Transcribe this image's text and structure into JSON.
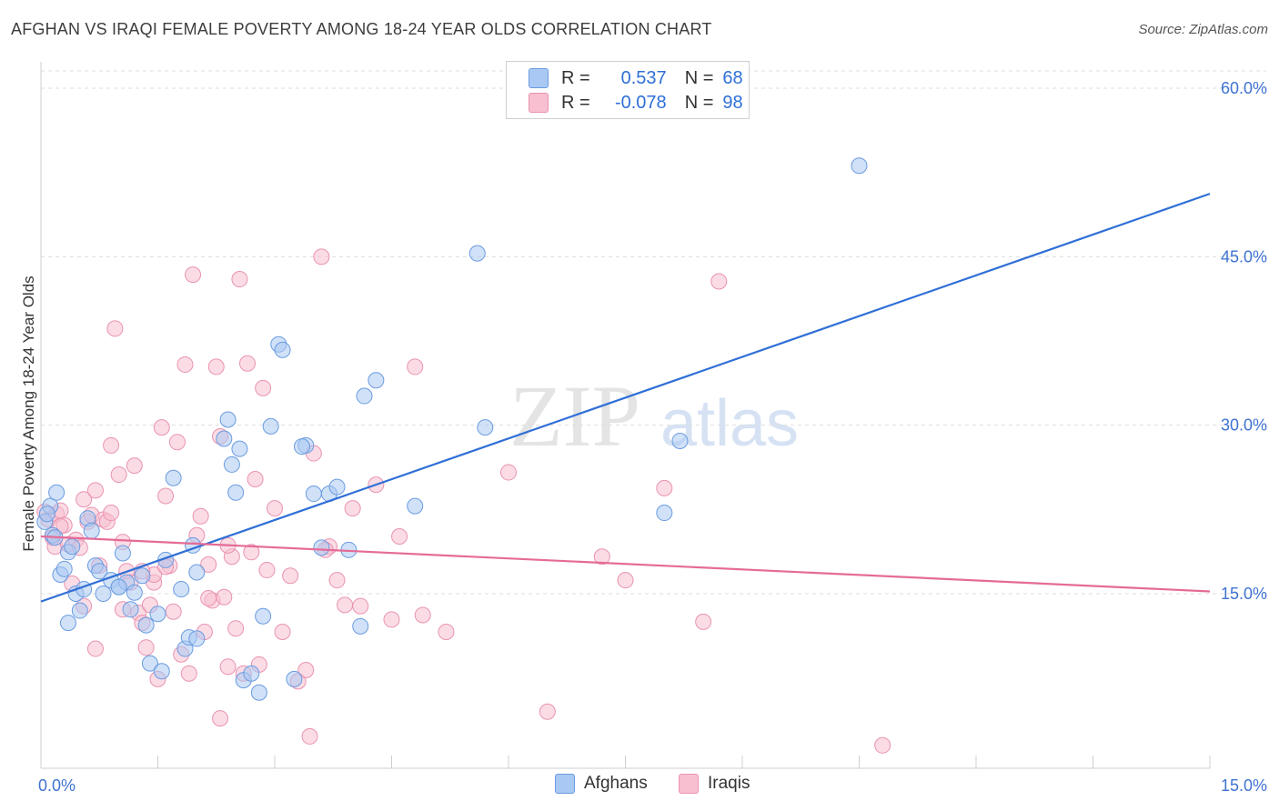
{
  "title": "AFGHAN VS IRAQI FEMALE POVERTY AMONG 18-24 YEAR OLDS CORRELATION CHART",
  "source": "Source: ZipAtlas.com",
  "watermark": {
    "zip": "ZIP",
    "atlas": "atlas"
  },
  "legend": {
    "r_label": "R =",
    "n_label": "N =",
    "afghans": {
      "r": "0.537",
      "n": "68"
    },
    "iraqis": {
      "r": "-0.078",
      "n": "98"
    }
  },
  "colors": {
    "afghans_fill": "#a9c8f3",
    "afghans_stroke": "#6b9ce0",
    "afghans_line": "#2f6fd6",
    "iraqis_fill": "#f7bfd0",
    "iraqis_stroke": "#e993b1",
    "iraqis_line": "#e56b97",
    "tick_label": "#3f73d1",
    "grid": "#dddddd"
  },
  "chart_data": {
    "type": "scatter",
    "title": "AFGHAN VS IRAQI FEMALE POVERTY AMONG 18-24 YEAR OLDS CORRELATION CHART",
    "xlabel": "",
    "ylabel": "Female Poverty Among 18-24 Year Olds",
    "xlim": [
      0,
      15
    ],
    "ylim": [
      0,
      60
    ],
    "x_tick_labels": [
      "0.0%",
      "15.0%"
    ],
    "y_tick_labels": [
      "15.0%",
      "30.0%",
      "45.0%",
      "60.0%"
    ],
    "y_ticks": [
      15,
      30,
      45,
      60
    ],
    "legend_entries": [
      "Afghans",
      "Iraqis"
    ],
    "series": [
      {
        "name": "Afghans",
        "trendline": {
          "x": [
            0,
            15
          ],
          "y": [
            14.3,
            50.6
          ]
        },
        "points": [
          [
            0.05,
            21.4
          ],
          [
            0.12,
            22.8
          ],
          [
            0.15,
            20.2
          ],
          [
            0.2,
            24.0
          ],
          [
            0.25,
            16.7
          ],
          [
            0.3,
            17.2
          ],
          [
            0.35,
            18.7
          ],
          [
            0.4,
            19.2
          ],
          [
            0.45,
            15.0
          ],
          [
            0.5,
            13.5
          ],
          [
            0.55,
            15.4
          ],
          [
            0.6,
            21.7
          ],
          [
            0.65,
            20.6
          ],
          [
            0.7,
            17.5
          ],
          [
            0.75,
            17.0
          ],
          [
            0.8,
            15.0
          ],
          [
            0.9,
            16.2
          ],
          [
            1.0,
            15.6
          ],
          [
            1.05,
            18.6
          ],
          [
            1.1,
            16.0
          ],
          [
            1.15,
            13.6
          ],
          [
            1.2,
            15.1
          ],
          [
            1.3,
            16.6
          ],
          [
            1.35,
            12.2
          ],
          [
            1.4,
            8.8
          ],
          [
            1.5,
            13.2
          ],
          [
            1.55,
            8.1
          ],
          [
            1.6,
            18.0
          ],
          [
            1.7,
            25.3
          ],
          [
            1.8,
            15.4
          ],
          [
            1.85,
            10.1
          ],
          [
            1.9,
            11.1
          ],
          [
            1.95,
            19.3
          ],
          [
            2.0,
            16.9
          ],
          [
            2.35,
            28.8
          ],
          [
            2.4,
            30.5
          ],
          [
            2.45,
            26.5
          ],
          [
            2.5,
            24.0
          ],
          [
            2.55,
            27.9
          ],
          [
            2.6,
            7.3
          ],
          [
            2.7,
            7.9
          ],
          [
            2.8,
            6.2
          ],
          [
            2.85,
            13.0
          ],
          [
            2.95,
            29.9
          ],
          [
            3.05,
            37.2
          ],
          [
            3.1,
            36.7
          ],
          [
            3.25,
            7.4
          ],
          [
            3.4,
            28.2
          ],
          [
            3.5,
            23.9
          ],
          [
            3.6,
            19.1
          ],
          [
            3.7,
            23.9
          ],
          [
            3.8,
            24.5
          ],
          [
            3.95,
            18.9
          ],
          [
            4.1,
            12.1
          ],
          [
            4.15,
            32.6
          ],
          [
            4.3,
            34.0
          ],
          [
            4.8,
            22.8
          ],
          [
            5.6,
            45.3
          ],
          [
            5.7,
            29.8
          ],
          [
            8.0,
            22.2
          ],
          [
            8.2,
            28.6
          ],
          [
            10.5,
            53.1
          ],
          [
            1.0,
            15.6
          ],
          [
            0.35,
            12.4
          ],
          [
            0.08,
            22.1
          ],
          [
            0.18,
            20.0
          ],
          [
            2.0,
            11.0
          ],
          [
            3.35,
            28.1
          ]
        ]
      },
      {
        "name": "Iraqis",
        "trendline": {
          "x": [
            0,
            15
          ],
          "y": [
            20.1,
            15.2
          ]
        },
        "points": [
          [
            0.05,
            22.3
          ],
          [
            0.1,
            21.6
          ],
          [
            0.15,
            20.0
          ],
          [
            0.18,
            19.2
          ],
          [
            0.2,
            22.1
          ],
          [
            0.25,
            22.4
          ],
          [
            0.3,
            21.1
          ],
          [
            0.35,
            19.4
          ],
          [
            0.4,
            15.9
          ],
          [
            0.45,
            19.8
          ],
          [
            0.5,
            19.1
          ],
          [
            0.55,
            23.4
          ],
          [
            0.6,
            21.4
          ],
          [
            0.65,
            22.0
          ],
          [
            0.7,
            24.2
          ],
          [
            0.75,
            17.5
          ],
          [
            0.8,
            21.6
          ],
          [
            0.85,
            21.4
          ],
          [
            0.9,
            28.2
          ],
          [
            0.95,
            38.6
          ],
          [
            1.0,
            25.6
          ],
          [
            1.05,
            19.6
          ],
          [
            1.1,
            17.0
          ],
          [
            1.15,
            16.0
          ],
          [
            1.2,
            26.4
          ],
          [
            1.25,
            13.3
          ],
          [
            1.3,
            12.4
          ],
          [
            1.35,
            10.2
          ],
          [
            1.4,
            14.0
          ],
          [
            1.45,
            16.0
          ],
          [
            1.5,
            7.4
          ],
          [
            1.55,
            29.8
          ],
          [
            1.6,
            23.7
          ],
          [
            1.65,
            17.5
          ],
          [
            1.7,
            13.4
          ],
          [
            1.75,
            28.5
          ],
          [
            1.8,
            9.6
          ],
          [
            1.85,
            35.4
          ],
          [
            1.9,
            7.9
          ],
          [
            1.95,
            43.4
          ],
          [
            2.0,
            20.2
          ],
          [
            2.05,
            21.9
          ],
          [
            2.1,
            11.6
          ],
          [
            2.15,
            17.6
          ],
          [
            2.2,
            14.4
          ],
          [
            2.25,
            35.2
          ],
          [
            2.3,
            29.0
          ],
          [
            2.35,
            14.7
          ],
          [
            2.4,
            8.5
          ],
          [
            2.45,
            18.3
          ],
          [
            2.5,
            11.9
          ],
          [
            2.55,
            43.0
          ],
          [
            2.6,
            7.9
          ],
          [
            2.65,
            35.5
          ],
          [
            2.7,
            18.7
          ],
          [
            2.75,
            25.2
          ],
          [
            2.8,
            8.7
          ],
          [
            2.85,
            33.3
          ],
          [
            2.9,
            17.1
          ],
          [
            3.0,
            22.6
          ],
          [
            3.1,
            11.6
          ],
          [
            3.2,
            16.6
          ],
          [
            3.3,
            7.2
          ],
          [
            3.4,
            8.2
          ],
          [
            3.5,
            27.5
          ],
          [
            3.6,
            45.0
          ],
          [
            3.7,
            19.2
          ],
          [
            3.8,
            16.2
          ],
          [
            3.9,
            14.0
          ],
          [
            4.0,
            22.6
          ],
          [
            4.1,
            13.9
          ],
          [
            4.3,
            24.7
          ],
          [
            4.5,
            12.7
          ],
          [
            4.6,
            20.1
          ],
          [
            4.8,
            35.2
          ],
          [
            4.9,
            13.1
          ],
          [
            5.2,
            11.6
          ],
          [
            6.0,
            25.8
          ],
          [
            6.5,
            4.5
          ],
          [
            7.2,
            18.3
          ],
          [
            7.5,
            16.2
          ],
          [
            8.0,
            24.4
          ],
          [
            8.5,
            12.5
          ],
          [
            8.7,
            42.8
          ],
          [
            10.8,
            1.5
          ],
          [
            3.45,
            2.3
          ],
          [
            2.3,
            3.9
          ],
          [
            0.7,
            10.1
          ],
          [
            1.05,
            13.6
          ],
          [
            1.45,
            16.7
          ],
          [
            2.15,
            14.6
          ],
          [
            0.25,
            21.0
          ],
          [
            0.55,
            13.9
          ],
          [
            0.9,
            22.2
          ],
          [
            2.4,
            19.3
          ],
          [
            3.65,
            18.9
          ],
          [
            1.6,
            17.4
          ],
          [
            1.3,
            17.0
          ]
        ]
      }
    ]
  },
  "bottom_legend": [
    "Afghans",
    "Iraqis"
  ]
}
